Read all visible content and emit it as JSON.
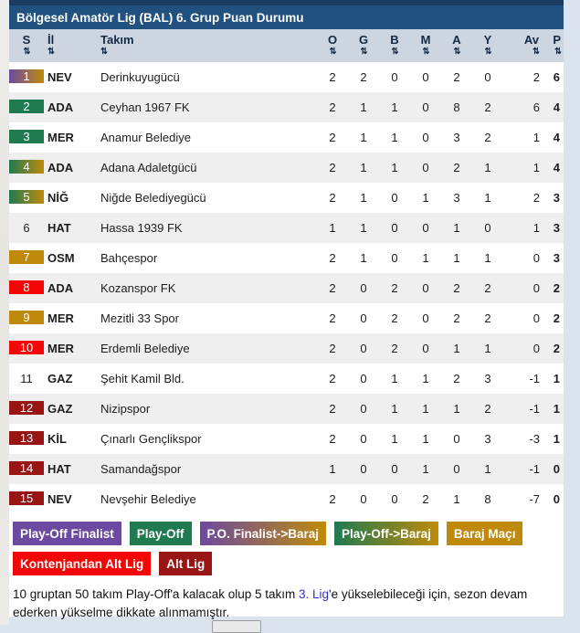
{
  "title": "Bölgesel Amatör Lig (BAL) 6. Grup Puan Durumu",
  "table": {
    "sort_icon": "⇅",
    "columns": [
      {
        "key": "s",
        "label": "S",
        "align": "center"
      },
      {
        "key": "il",
        "label": "İl",
        "align": "left"
      },
      {
        "key": "takim",
        "label": "Takım",
        "align": "left"
      },
      {
        "key": "o",
        "label": "O",
        "align": "center"
      },
      {
        "key": "g",
        "label": "G",
        "align": "center"
      },
      {
        "key": "b",
        "label": "B",
        "align": "center"
      },
      {
        "key": "m",
        "label": "M",
        "align": "center"
      },
      {
        "key": "a",
        "label": "A",
        "align": "center"
      },
      {
        "key": "y",
        "label": "Y",
        "align": "center"
      },
      {
        "key": "av",
        "label": "Av",
        "align": "right"
      },
      {
        "key": "p",
        "label": "P",
        "align": "right"
      }
    ],
    "rows": [
      {
        "s": 1,
        "il": "NEV",
        "takim": "Derinkuyugücü",
        "o": 2,
        "g": 2,
        "b": 0,
        "m": 0,
        "a": 2,
        "y": 0,
        "av": 2,
        "p": 6,
        "badge": "po_finalist_baraj"
      },
      {
        "s": 2,
        "il": "ADA",
        "takim": "Ceyhan 1967 FK",
        "o": 2,
        "g": 1,
        "b": 1,
        "m": 0,
        "a": 8,
        "y": 2,
        "av": 6,
        "p": 4,
        "badge": "playoff"
      },
      {
        "s": 3,
        "il": "MER",
        "takim": "Anamur Belediye",
        "o": 2,
        "g": 1,
        "b": 1,
        "m": 0,
        "a": 3,
        "y": 2,
        "av": 1,
        "p": 4,
        "badge": "playoff"
      },
      {
        "s": 4,
        "il": "ADA",
        "takim": "Adana Adaletgücü",
        "o": 2,
        "g": 1,
        "b": 1,
        "m": 0,
        "a": 2,
        "y": 1,
        "av": 1,
        "p": 4,
        "badge": "playoff_baraj"
      },
      {
        "s": 5,
        "il": "NİĞ",
        "takim": "Niğde Belediyegücü",
        "o": 2,
        "g": 1,
        "b": 0,
        "m": 1,
        "a": 3,
        "y": 1,
        "av": 2,
        "p": 3,
        "badge": "playoff_baraj"
      },
      {
        "s": 6,
        "il": "HAT",
        "takim": "Hassa 1939 FK",
        "o": 1,
        "g": 1,
        "b": 0,
        "m": 0,
        "a": 1,
        "y": 0,
        "av": 1,
        "p": 3,
        "badge": "none"
      },
      {
        "s": 7,
        "il": "OSM",
        "takim": "Bahçespor",
        "o": 2,
        "g": 1,
        "b": 0,
        "m": 1,
        "a": 1,
        "y": 1,
        "av": 0,
        "p": 3,
        "badge": "baraj"
      },
      {
        "s": 8,
        "il": "ADA",
        "takim": "Kozanspor FK",
        "o": 2,
        "g": 0,
        "b": 2,
        "m": 0,
        "a": 2,
        "y": 2,
        "av": 0,
        "p": 2,
        "badge": "kontenjan_altlig"
      },
      {
        "s": 9,
        "il": "MER",
        "takim": "Mezitli 33 Spor",
        "o": 2,
        "g": 0,
        "b": 2,
        "m": 0,
        "a": 2,
        "y": 2,
        "av": 0,
        "p": 2,
        "badge": "baraj"
      },
      {
        "s": 10,
        "il": "MER",
        "takim": "Erdemli Belediye",
        "o": 2,
        "g": 0,
        "b": 2,
        "m": 0,
        "a": 1,
        "y": 1,
        "av": 0,
        "p": 2,
        "badge": "kontenjan_altlig"
      },
      {
        "s": 11,
        "il": "GAZ",
        "takim": "Şehit Kamil Bld.",
        "o": 2,
        "g": 0,
        "b": 1,
        "m": 1,
        "a": 2,
        "y": 3,
        "av": -1,
        "p": 1,
        "badge": "none"
      },
      {
        "s": 12,
        "il": "GAZ",
        "takim": "Nizipspor",
        "o": 2,
        "g": 0,
        "b": 1,
        "m": 1,
        "a": 1,
        "y": 2,
        "av": -1,
        "p": 1,
        "badge": "altlig"
      },
      {
        "s": 13,
        "il": "KİL",
        "takim": "Çınarlı Gençlikspor",
        "o": 2,
        "g": 0,
        "b": 1,
        "m": 1,
        "a": 0,
        "y": 3,
        "av": -3,
        "p": 1,
        "badge": "altlig"
      },
      {
        "s": 14,
        "il": "HAT",
        "takim": "Samandağspor",
        "o": 1,
        "g": 0,
        "b": 0,
        "m": 1,
        "a": 0,
        "y": 1,
        "av": -1,
        "p": 0,
        "badge": "altlig"
      },
      {
        "s": 15,
        "il": "NEV",
        "takim": "Nevşehir Belediye",
        "o": 2,
        "g": 0,
        "b": 0,
        "m": 2,
        "a": 1,
        "y": 8,
        "av": -7,
        "p": 0,
        "badge": "altlig"
      }
    ]
  },
  "legend": {
    "row1": [
      {
        "label": "Play-Off Finalist",
        "type": "po_finalist"
      },
      {
        "label": "Play-Off",
        "type": "playoff"
      },
      {
        "label": "P.O. Finalist->Baraj",
        "type": "po_finalist_baraj"
      },
      {
        "label": "Play-Off->Baraj",
        "type": "playoff_baraj"
      },
      {
        "label": "Baraj Maçı",
        "type": "baraj"
      }
    ],
    "row2": [
      {
        "label": "Kontenjandan Alt Lig",
        "type": "kontenjan_altlig"
      },
      {
        "label": "Alt Lig",
        "type": "altlig"
      }
    ]
  },
  "note": {
    "before": "10 gruptan 50 takım Play-Off'a kalacak olup 5 takım ",
    "link": "3. Lig",
    "after": "'e yükselebileceği için, sezon devam ederken yükselme dikkate alınmamıştır."
  },
  "colors": {
    "purple": "#6b4aa0",
    "green": "#1f7a50",
    "gold": "#bf8a0b",
    "red": "#f50606",
    "darkred": "#991414",
    "title_bar": "#20517f",
    "top_strip": "#1a3a5f",
    "header_bg": "#ccd5e0",
    "link_blue": "#3333cc"
  }
}
